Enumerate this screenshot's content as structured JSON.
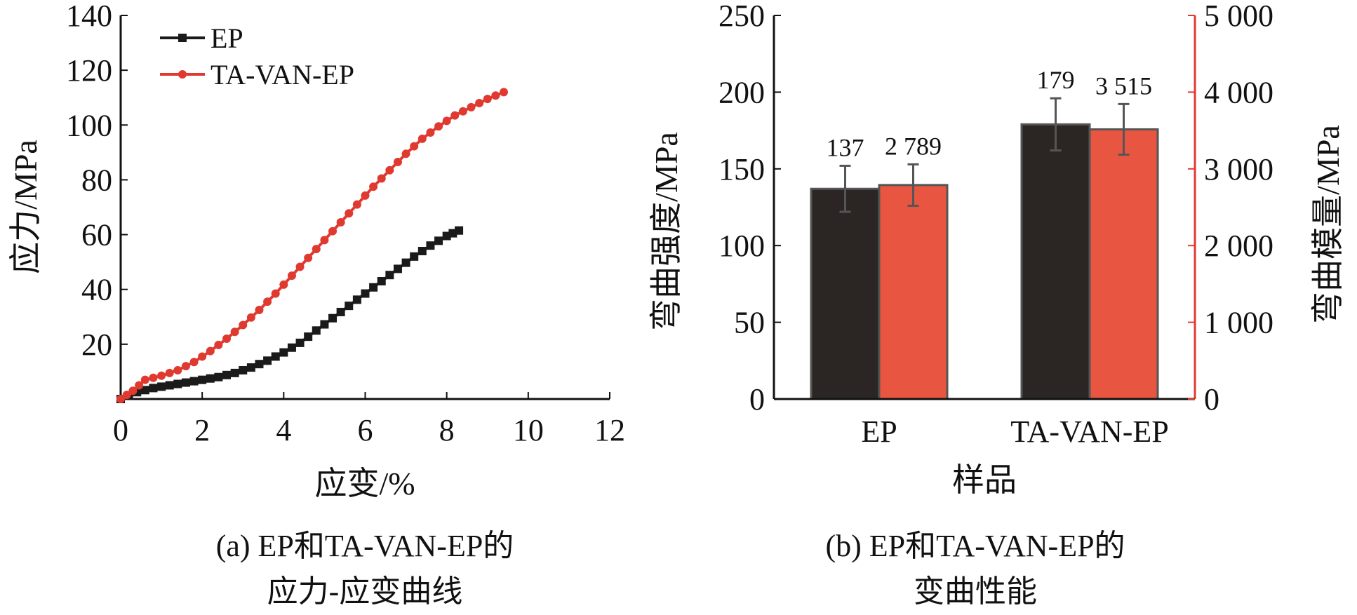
{
  "colors": {
    "ep": "#1a1a1a",
    "ta": "#e03a30",
    "bar_ep": "#2b2623",
    "bar_ta": "#e85641",
    "right_axis": "#e03a30"
  },
  "chart_data": [
    {
      "type": "line",
      "xlabel": "应变/%",
      "ylabel": "应力/MPa",
      "xlim": [
        0,
        12
      ],
      "ylim": [
        0,
        140
      ],
      "xticks": [
        0,
        2,
        4,
        6,
        8,
        10,
        12
      ],
      "yticks": [
        20,
        40,
        60,
        80,
        100,
        120,
        140
      ],
      "legend_position": "top-left",
      "caption_line1": "(a) EP和TA-VAN-EP的",
      "caption_line2": "应力-应变曲线",
      "series": [
        {
          "name": "EP",
          "marker": "square",
          "x": [
            0,
            0.4,
            0.8,
            1.2,
            1.6,
            2.0,
            2.4,
            2.8,
            3.2,
            3.6,
            4.0,
            4.4,
            4.8,
            5.2,
            5.6,
            6.0,
            6.4,
            6.8,
            7.2,
            7.6,
            8.0,
            8.3
          ],
          "y": [
            0,
            2.5,
            4,
            5,
            6,
            7,
            8,
            9.5,
            11.5,
            14,
            17,
            20.5,
            25,
            29.5,
            34,
            38.5,
            43,
            47.5,
            52,
            56,
            59.5,
            61.5
          ]
        },
        {
          "name": "TA-VAN-EP",
          "marker": "circle",
          "x": [
            0,
            0.3,
            0.6,
            1.0,
            1.4,
            1.8,
            2.2,
            2.6,
            3.0,
            3.4,
            3.8,
            4.2,
            4.6,
            5.0,
            5.4,
            5.8,
            6.2,
            6.6,
            7.0,
            7.4,
            7.8,
            8.2,
            8.6,
            9.0,
            9.4
          ],
          "y": [
            0,
            3,
            7,
            8.5,
            10.5,
            13.5,
            17.5,
            22,
            27,
            32.5,
            38.5,
            45,
            51.5,
            58,
            64.5,
            71,
            77.5,
            83.5,
            89.5,
            95,
            99.5,
            103.5,
            106.5,
            109.5,
            112
          ]
        }
      ]
    },
    {
      "type": "bar",
      "xlabel": "样品",
      "ylabel": "弯曲强度/MPa",
      "y2label": "弯曲模量/MPa",
      "categories": [
        "EP",
        "TA-VAN-EP"
      ],
      "ylim": [
        0,
        250
      ],
      "y2lim": [
        0,
        5000
      ],
      "yticks": [
        0,
        50,
        100,
        150,
        200,
        250
      ],
      "y2ticks": [
        0,
        1000,
        2000,
        3000,
        4000,
        5000
      ],
      "y2tick_labels": [
        "0",
        "1 000",
        "2 000",
        "3 000",
        "4 000",
        "5 000"
      ],
      "caption_line1": "(b) EP和TA-VAN-EP的",
      "caption_line2": "变曲性能",
      "series": [
        {
          "name": "弯曲强度",
          "axis": "left",
          "values": [
            137,
            179
          ],
          "errors": [
            15,
            17
          ],
          "labels": [
            "137",
            "179"
          ]
        },
        {
          "name": "弯曲模量",
          "axis": "right",
          "values": [
            2789,
            3515
          ],
          "errors": [
            270,
            330
          ],
          "labels": [
            "2 789",
            "3 515"
          ]
        }
      ]
    }
  ]
}
